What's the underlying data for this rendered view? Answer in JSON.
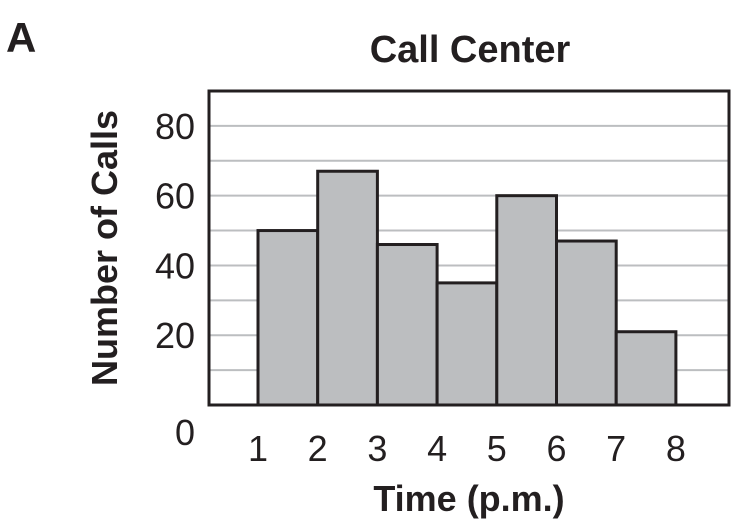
{
  "panel_label": "A",
  "chart_data": {
    "type": "bar",
    "title": "Call Center",
    "xlabel": "Time (p.m.)",
    "ylabel": "Number of Calls",
    "x_tick_labels": [
      "1",
      "2",
      "3",
      "4",
      "5",
      "6",
      "7",
      "8"
    ],
    "y_tick_labels": [
      "0",
      "20",
      "40",
      "60",
      "80"
    ],
    "bins": [
      {
        "start": 1,
        "end": 2,
        "value": 50
      },
      {
        "start": 2,
        "end": 3,
        "value": 67
      },
      {
        "start": 3,
        "end": 4,
        "value": 46
      },
      {
        "start": 4,
        "end": 5,
        "value": 35
      },
      {
        "start": 5,
        "end": 6,
        "value": 60
      },
      {
        "start": 6,
        "end": 7,
        "value": 47
      },
      {
        "start": 7,
        "end": 8,
        "value": 21
      }
    ],
    "ylim": [
      0,
      90
    ],
    "y_gridlines": [
      10,
      20,
      30,
      40,
      50,
      60,
      70,
      80
    ],
    "grid": true,
    "bar_color": "#bcbec0",
    "edge_color": "#231f20",
    "grid_color": "#bcbec0"
  }
}
